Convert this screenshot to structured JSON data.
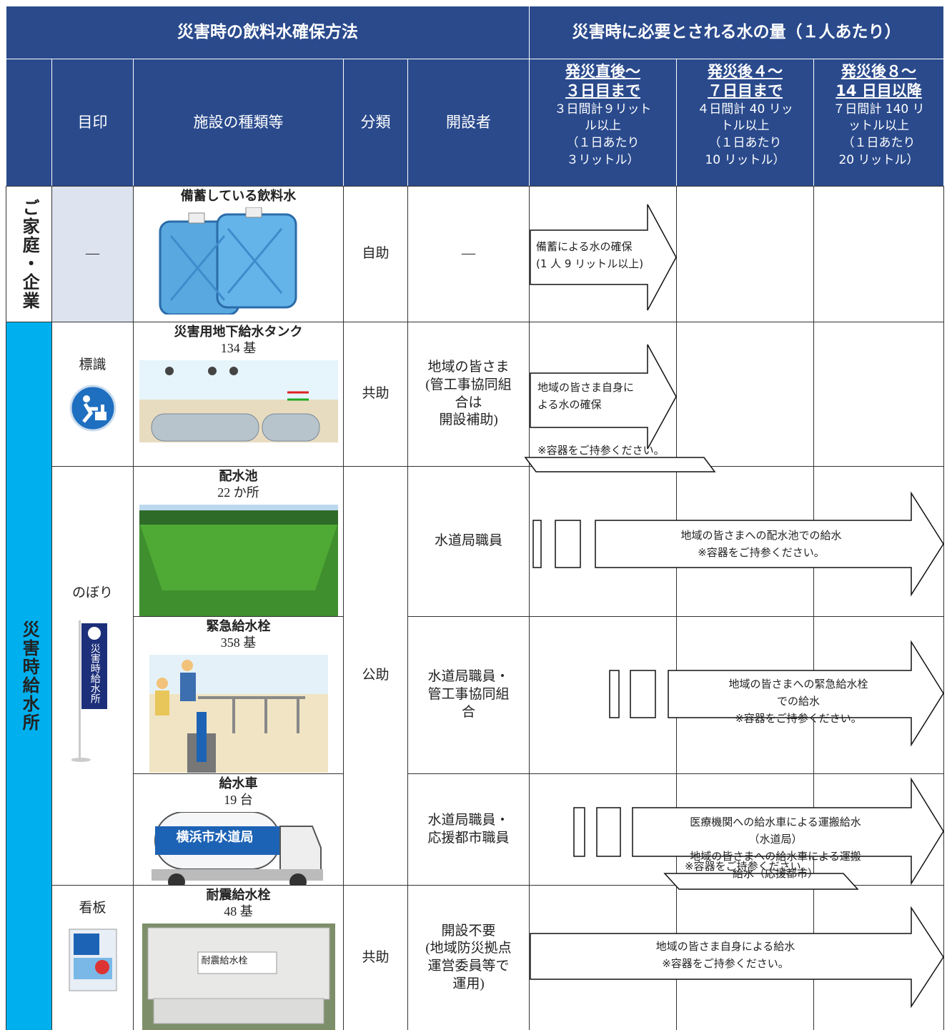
{
  "header": {
    "left_title": "災害時の飲料水確保方法",
    "right_title": "災害時に必要とされる水の量（１人あたり）"
  },
  "columns": [
    "目印",
    "施設の種類等",
    "分類",
    "開設者"
  ],
  "periods": [
    {
      "title": "発災直後～\n３日目まで",
      "detail": "３日間計９リット\nル以上\n（１日あたり\n３リットル）"
    },
    {
      "title": "発災後４～\n７日目まで",
      "detail": "４日間計 40 リッ\nトル以上\n（１日あたり\n10 リットル）"
    },
    {
      "title": "発災後８～\n14 日目以降",
      "detail": "７日間計 140 リ\nットル以上\n（１日あたり\n20 リットル）"
    }
  ],
  "groups": [
    "ご家庭・企業",
    "災害時給水所"
  ],
  "rows": [
    {
      "mark": "—",
      "facility": "備蓄している飲料水",
      "category": "自助",
      "opener": "—",
      "arrow": "備蓄による水の確保\n(1 人 9 リットル以上)"
    },
    {
      "mark": "標識",
      "facility": "災害用地下給水タンク",
      "count": "134 基",
      "category": "共助",
      "opener": "地域の皆さま\n(管工事協同組\n合は\n開設補助)",
      "arrow": "地域の皆さま自身に\nよる水の確保",
      "note": "※容器をご持参ください。"
    },
    {
      "mark": "のぼり",
      "facility": "配水池",
      "count": "22 か所",
      "category": "公助",
      "opener": "水道局職員",
      "arrow": "地域の皆さまへの配水池での給水\n※容器をご持参ください。"
    },
    {
      "facility": "緊急給水栓",
      "count": "358 基",
      "opener": "水道局職員・\n管工事協同組\n合",
      "arrow": "地域の皆さまへの緊急給水栓での給水\n※容器をご持参ください。"
    },
    {
      "facility": "給水車",
      "count": "19 台",
      "opener": "水道局職員・\n応援都市職員",
      "arrow": "医療機関への給水車による運搬給水（水道局）\n地域の皆さまへの給水車による運搬給水（応援都市）",
      "note": "※容器をご持参ください。"
    },
    {
      "mark": "看板",
      "facility": "耐震給水栓",
      "count": "48 基",
      "category": "共助",
      "opener": "開設不要\n(地域防災拠点\n運営委員等で\n運用)",
      "arrow": "地域の皆さま自身による給水\n※容器をご持参ください。"
    }
  ],
  "images": {
    "flag": "災害時給水所",
    "truck": "横浜市水道局",
    "hydrant": "耐震給水栓"
  }
}
